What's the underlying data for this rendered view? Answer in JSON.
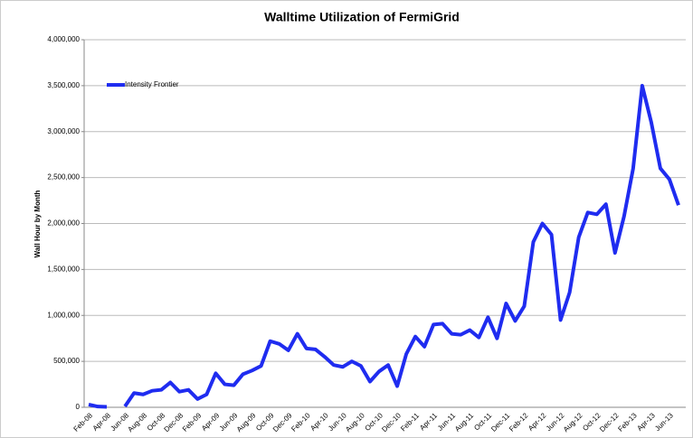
{
  "chart_data": {
    "type": "line",
    "title": "Walltime Utilization of FermiGrid",
    "y_label": "Wall Hour by Month",
    "categories": [
      "Feb-08",
      null,
      "Apr-08",
      null,
      "Jun-08",
      null,
      "Aug-08",
      null,
      "Oct-08",
      null,
      "Dec-08",
      null,
      "Feb-09",
      null,
      "Apr-09",
      null,
      "Jun-09",
      null,
      "Aug-09",
      null,
      "Oct-09",
      null,
      "Dec-09",
      null,
      "Feb-10",
      null,
      "Apr-10",
      null,
      "Jun-10",
      null,
      "Aug-10",
      null,
      "Oct-10",
      null,
      "Dec-10",
      null,
      "Feb-11",
      null,
      "Apr-11",
      null,
      "Jun-11",
      null,
      "Aug-11",
      null,
      "Oct-11",
      null,
      "Dec-11",
      null,
      "Feb-12",
      null,
      "Apr-12",
      null,
      "Jun-12",
      null,
      "Aug-12",
      null,
      "Oct-12",
      null,
      "Dec-12",
      null,
      "Feb-13",
      null,
      "Apr-13",
      null,
      "Jun-13",
      null
    ],
    "series": [
      {
        "name": "Intensity Frontier",
        "color": "#1f2cf0",
        "values": [
          30000,
          8000,
          5000,
          null,
          10000,
          155000,
          140000,
          180000,
          190000,
          270000,
          170000,
          190000,
          90000,
          140000,
          370000,
          250000,
          240000,
          360000,
          400000,
          450000,
          720000,
          690000,
          620000,
          800000,
          640000,
          630000,
          550000,
          460000,
          440000,
          500000,
          450000,
          280000,
          390000,
          460000,
          230000,
          580000,
          770000,
          660000,
          900000,
          910000,
          800000,
          790000,
          840000,
          760000,
          980000,
          750000,
          1130000,
          940000,
          1100000,
          1800000,
          2000000,
          1880000,
          950000,
          1250000,
          1850000,
          2120000,
          2100000,
          2210000,
          1680000,
          2080000,
          2600000,
          3500000,
          3100000,
          2600000,
          2480000,
          2200000
        ]
      }
    ],
    "ylim": [
      0,
      4000000
    ],
    "yticks": [
      0,
      {
        "value": 500000,
        "label": "500,000"
      },
      {
        "value": 1000000,
        "label": "1,000,000"
      },
      {
        "value": 1500000,
        "label": "1,500,000"
      },
      {
        "value": 2000000,
        "label": "2,000,000"
      },
      {
        "value": 2500000,
        "label": "2,500,000"
      },
      {
        "value": 3000000,
        "label": "3,000,000"
      },
      {
        "value": 3500000,
        "label": "3,500,000"
      },
      {
        "value": 4000000,
        "label": "4,000,000"
      }
    ],
    "grid": true,
    "legend": "top-left"
  }
}
